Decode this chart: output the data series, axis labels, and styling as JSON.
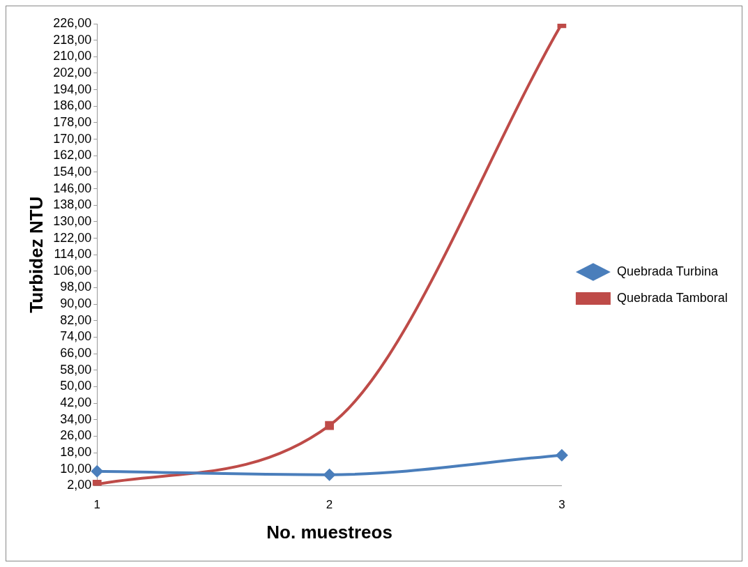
{
  "chart_data": {
    "type": "line",
    "xlabel": "No. muestreos",
    "ylabel": "Turbidez NTU",
    "categories": [
      "1",
      "2",
      "3"
    ],
    "series": [
      {
        "name": "Quebrada Turbina",
        "color": "#4a7ebb",
        "marker": "diamond",
        "values": [
          9.0,
          7.3,
          16.8
        ]
      },
      {
        "name": "Quebrada Tamboral",
        "color": "#be4b48",
        "marker": "square",
        "values": [
          2.7,
          31.2,
          226
        ]
      }
    ],
    "ylim": [
      2,
      226
    ],
    "yticks": [
      {
        "value": 2,
        "label": "2,00"
      },
      {
        "value": 10,
        "label": "10,00"
      },
      {
        "value": 18,
        "label": "18,00"
      },
      {
        "value": 26,
        "label": "26,00"
      },
      {
        "value": 34,
        "label": "34,00"
      },
      {
        "value": 42,
        "label": "42,00"
      },
      {
        "value": 50,
        "label": "50,00"
      },
      {
        "value": 58,
        "label": "58,00"
      },
      {
        "value": 66,
        "label": "66,00"
      },
      {
        "value": 74,
        "label": "74,00"
      },
      {
        "value": 82,
        "label": "82,00"
      },
      {
        "value": 90,
        "label": "90,00"
      },
      {
        "value": 98,
        "label": "98,00"
      },
      {
        "value": 106,
        "label": "106,00"
      },
      {
        "value": 114,
        "label": "114,00"
      },
      {
        "value": 122,
        "label": "122,00"
      },
      {
        "value": 130,
        "label": "130,00"
      },
      {
        "value": 138,
        "label": "138,00"
      },
      {
        "value": 146,
        "label": "146,00"
      },
      {
        "value": 154,
        "label": "154,00"
      },
      {
        "value": 162,
        "label": "162,00"
      },
      {
        "value": 170,
        "label": "170,00"
      },
      {
        "value": 178,
        "label": "178,00"
      },
      {
        "value": 186,
        "label": "186,00"
      },
      {
        "value": 194,
        "label": "194,00"
      },
      {
        "value": 202,
        "label": "202,00"
      },
      {
        "value": 210,
        "label": "210,00"
      },
      {
        "value": 218,
        "label": "218,00"
      },
      {
        "value": 226,
        "label": "226,00"
      }
    ],
    "grid": false,
    "legend": "right",
    "line_style": "solid"
  }
}
